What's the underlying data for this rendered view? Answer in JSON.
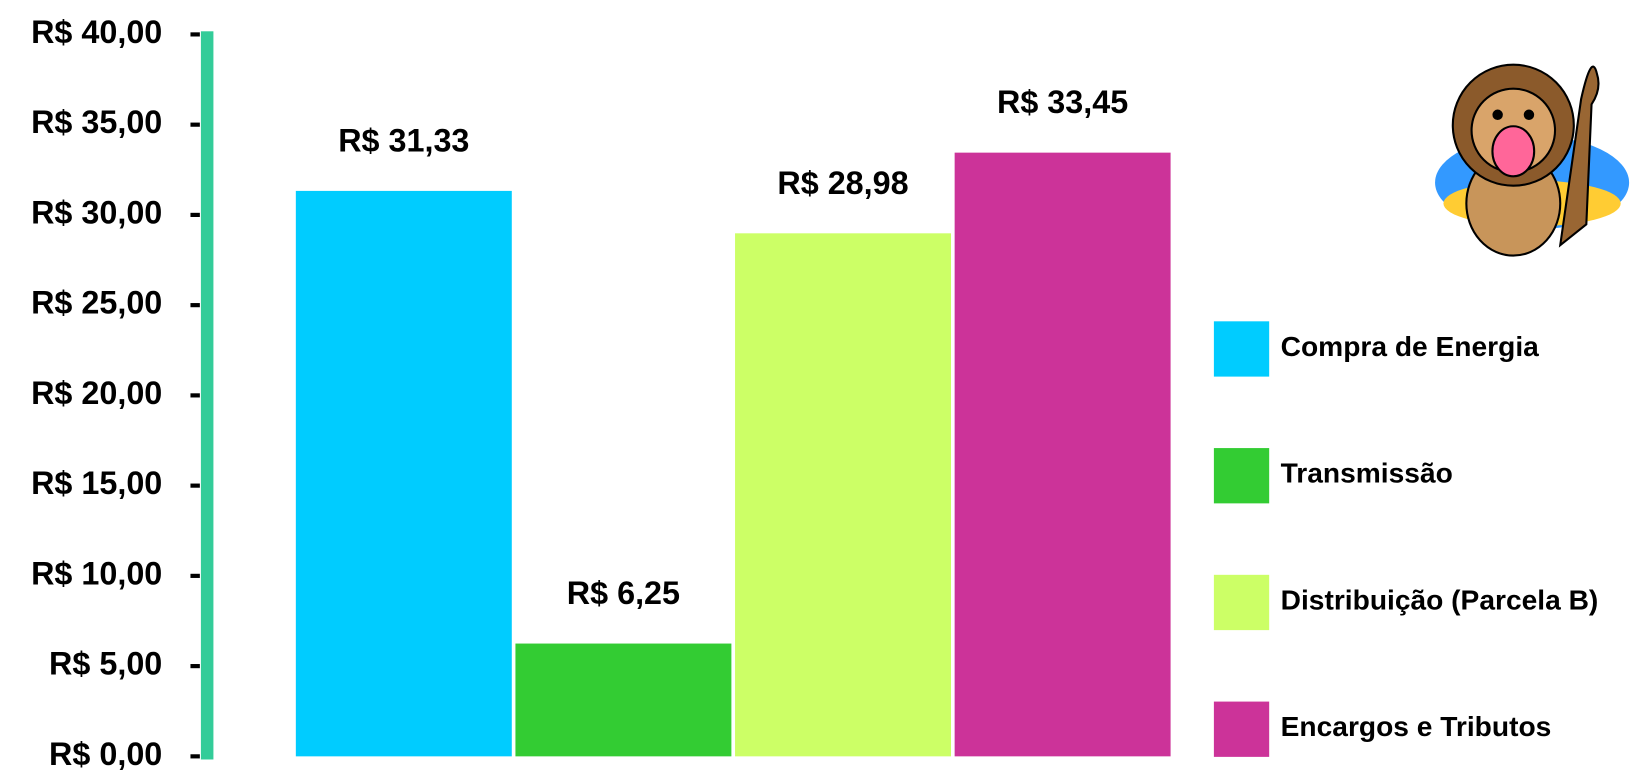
{
  "chart_data": {
    "type": "bar",
    "ylim": [
      0,
      40
    ],
    "yticks": [
      {
        "value": 0,
        "label": "R$ 0,00"
      },
      {
        "value": 5,
        "label": "R$ 5,00"
      },
      {
        "value": 10,
        "label": "R$ 10,00"
      },
      {
        "value": 15,
        "label": "R$ 15,00"
      },
      {
        "value": 20,
        "label": "R$ 20,00"
      },
      {
        "value": 25,
        "label": "R$ 25,00"
      },
      {
        "value": 30,
        "label": "R$ 30,00"
      },
      {
        "value": 35,
        "label": "R$ 35,00"
      },
      {
        "value": 40,
        "label": "R$ 40,00"
      }
    ],
    "series": [
      {
        "name": "Compra de Energia",
        "color": "#00ccff",
        "values": [
          31.33
        ],
        "value_labels": [
          "R$ 31,33"
        ]
      },
      {
        "name": "Transmissão",
        "color": "#33cc33",
        "values": [
          6.25
        ],
        "value_labels": [
          "R$ 6,25"
        ]
      },
      {
        "name": "Distribuição (Parcela B)",
        "color": "#ccff66",
        "values": [
          28.98
        ],
        "value_labels": [
          "R$ 28,98"
        ]
      },
      {
        "name": "Encargos e Tributos",
        "color": "#cc3399",
        "values": [
          33.45
        ],
        "value_labels": [
          "R$ 33,45"
        ]
      }
    ],
    "legend": "right",
    "grid": false
  }
}
